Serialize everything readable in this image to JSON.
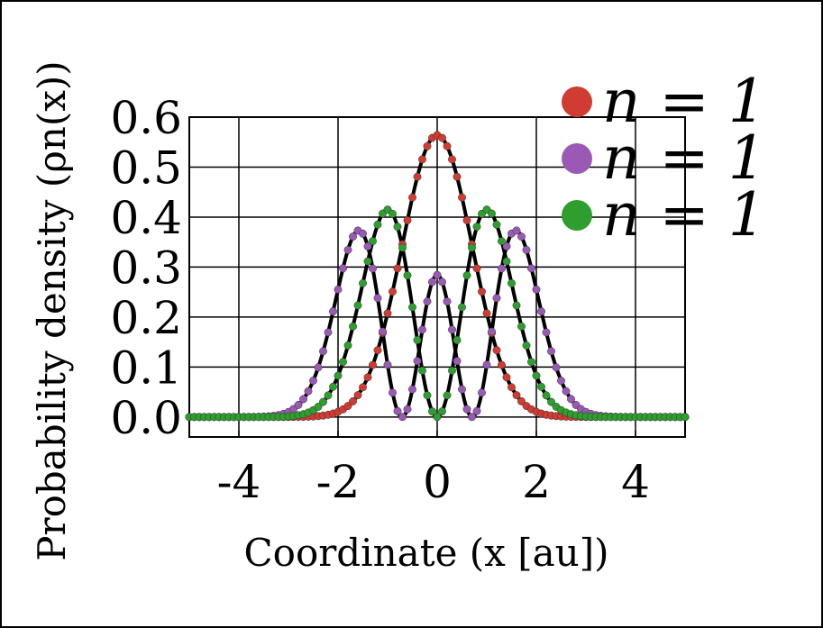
{
  "chart_data": {
    "type": "line",
    "xlabel": "Coordinate (x [au])",
    "ylabel": "Probability density (ρn(x))",
    "xlim": [
      -5,
      5
    ],
    "ylim": [
      -0.04,
      0.6
    ],
    "x_ticks": [
      -4,
      -2,
      0,
      2,
      4
    ],
    "x_tick_labels": [
      "-4",
      "-2",
      "0",
      "2",
      "4"
    ],
    "y_ticks": [
      0.0,
      0.1,
      0.2,
      0.3,
      0.4,
      0.5,
      0.6
    ],
    "y_tick_labels": [
      "0.0",
      "0.1",
      "0.2",
      "0.3",
      "0.4",
      "0.5",
      "0.6"
    ],
    "grid": true,
    "legend_position": "top-right",
    "curve_color": "#000000",
    "series": [
      {
        "name": "n = 1",
        "label": "n = 1",
        "color": "#d03b32",
        "state": 0,
        "peak": 0.564
      },
      {
        "name": "n = 1",
        "label": "n = 1",
        "color": "#9b59b6",
        "state": 2,
        "peak": 0.368
      },
      {
        "name": "n = 1",
        "label": "n = 1",
        "color": "#2e9e2e",
        "state": 1,
        "peak": 0.415
      }
    ],
    "x_samples": {
      "start": -5,
      "end": 5,
      "step": 0.1
    }
  }
}
